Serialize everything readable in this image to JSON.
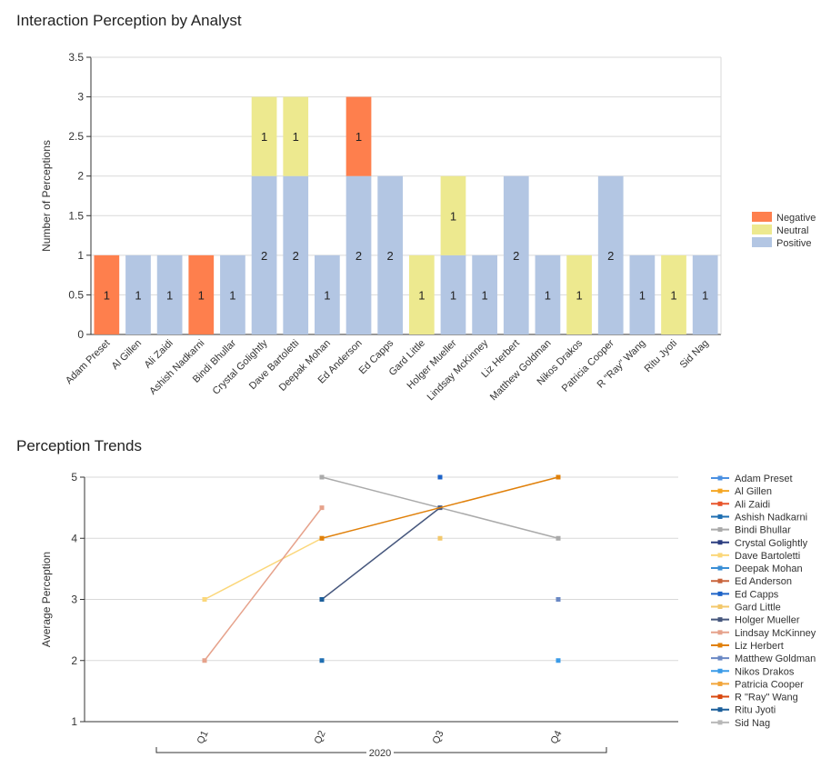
{
  "chart_data": [
    {
      "type": "bar",
      "title": "Interaction Perception by Analyst",
      "xlabel": "",
      "ylabel": "Number of Perceptions",
      "ylim": [
        0,
        3.5
      ],
      "yticks": [
        "0",
        "0.5",
        "1",
        "1.5",
        "2",
        "2.5",
        "3",
        "3.5"
      ],
      "grid": true,
      "legend_position": "right",
      "categories": [
        "Adam Preset",
        "Al Gillen",
        "Ali Zaidi",
        "Ashish Nadkarni",
        "Bindi Bhullar",
        "Crystal Golightly",
        "Dave Bartoletti",
        "Deepak Mohan",
        "Ed Anderson",
        "Ed Capps",
        "Gard Little",
        "Holger Mueller",
        "Lindsay McKinney",
        "Liz Herbert",
        "Matthew Goldman",
        "Nikos Drakos",
        "Patricia Cooper",
        "R \"Ray\" Wang",
        "Ritu Jyoti",
        "Sid Nag"
      ],
      "series": [
        {
          "name": "Positive",
          "color": "#b3c6e3",
          "values": [
            0,
            1,
            1,
            0,
            1,
            2,
            2,
            1,
            2,
            2,
            0,
            1,
            1,
            2,
            1,
            0,
            2,
            1,
            0,
            1
          ]
        },
        {
          "name": "Neutral",
          "color": "#ede98f",
          "values": [
            0,
            0,
            0,
            0,
            0,
            1,
            1,
            0,
            0,
            0,
            1,
            1,
            0,
            0,
            0,
            1,
            0,
            0,
            1,
            0
          ]
        },
        {
          "name": "Negative",
          "color": "#fe7f4d",
          "values": [
            1,
            0,
            0,
            1,
            0,
            0,
            0,
            0,
            1,
            0,
            0,
            0,
            0,
            0,
            0,
            0,
            0,
            0,
            0,
            0
          ]
        }
      ],
      "legend_order": [
        "Negative",
        "Neutral",
        "Positive"
      ]
    },
    {
      "type": "line",
      "title": "Perception Trends",
      "xlabel": "",
      "ylabel": "Average Perception",
      "ylim": [
        1,
        5
      ],
      "yticks": [
        "1",
        "2",
        "3",
        "4",
        "5"
      ],
      "grid": true,
      "legend_position": "right",
      "categories": [
        "Q1",
        "Q2",
        "Q3",
        "Q4"
      ],
      "group_label": "2020",
      "series": [
        {
          "name": "Adam Preset",
          "color": "#4a90e2",
          "values": [
            null,
            null,
            null,
            null
          ]
        },
        {
          "name": "Al Gillen",
          "color": "#f5a623",
          "values": [
            null,
            null,
            null,
            null
          ]
        },
        {
          "name": "Ali Zaidi",
          "color": "#e8552b",
          "values": [
            null,
            null,
            null,
            null
          ]
        },
        {
          "name": "Ashish Nadkarni",
          "color": "#1f6fb2",
          "values": [
            null,
            2,
            null,
            null
          ]
        },
        {
          "name": "Bindi Bhullar",
          "color": "#aaaaaa",
          "values": [
            null,
            5,
            null,
            4
          ]
        },
        {
          "name": "Crystal Golightly",
          "color": "#2c3e80",
          "values": [
            null,
            null,
            null,
            null
          ]
        },
        {
          "name": "Dave Bartoletti",
          "color": "#fbd77a",
          "values": [
            3,
            4,
            null,
            null
          ]
        },
        {
          "name": "Deepak Mohan",
          "color": "#3a8fd6",
          "values": [
            null,
            null,
            null,
            null
          ]
        },
        {
          "name": "Ed Anderson",
          "color": "#c9643c",
          "values": [
            null,
            null,
            null,
            null
          ]
        },
        {
          "name": "Ed Capps",
          "color": "#1d63c8",
          "values": [
            null,
            null,
            5,
            null
          ]
        },
        {
          "name": "Gard Little",
          "color": "#f3c86b",
          "values": [
            null,
            null,
            4,
            null
          ]
        },
        {
          "name": "Holger Mueller",
          "color": "#46577d",
          "values": [
            null,
            3,
            4.5,
            null
          ]
        },
        {
          "name": "Lindsay McKinney",
          "color": "#e6a28b",
          "values": [
            2,
            4.5,
            null,
            null
          ]
        },
        {
          "name": "Liz Herbert",
          "color": "#e0800a",
          "values": [
            null,
            4,
            null,
            5
          ]
        },
        {
          "name": "Matthew Goldman",
          "color": "#6a88c4",
          "values": [
            null,
            null,
            null,
            3
          ]
        },
        {
          "name": "Nikos Drakos",
          "color": "#3a9be8",
          "values": [
            null,
            null,
            null,
            2
          ]
        },
        {
          "name": "Patricia Cooper",
          "color": "#f2a53a",
          "values": [
            null,
            null,
            null,
            null
          ]
        },
        {
          "name": "R \"Ray\" Wang",
          "color": "#d9480f",
          "values": [
            null,
            null,
            null,
            null
          ]
        },
        {
          "name": "Ritu Jyoti",
          "color": "#1b5e9a",
          "values": [
            null,
            3,
            null,
            null
          ]
        },
        {
          "name": "Sid Nag",
          "color": "#b8b8b8",
          "values": [
            null,
            null,
            null,
            null
          ]
        }
      ]
    }
  ]
}
